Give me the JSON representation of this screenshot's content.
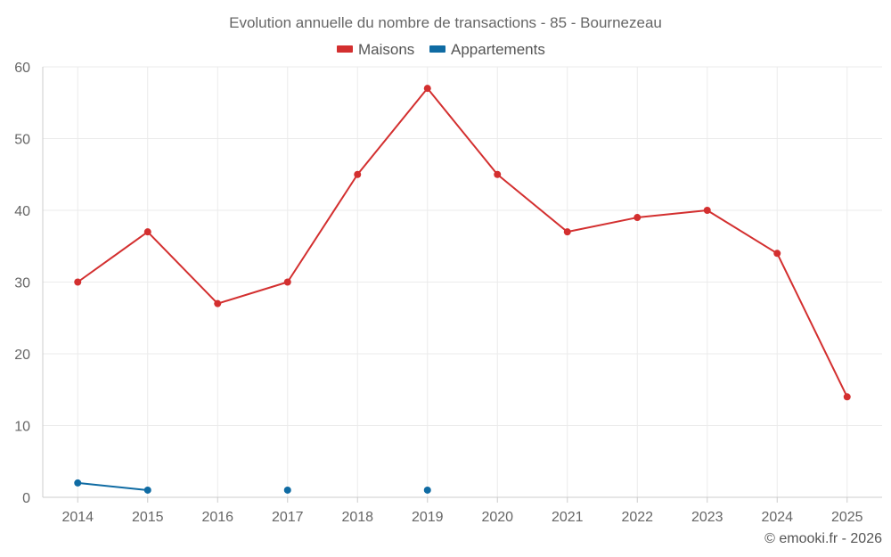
{
  "chart_data": {
    "type": "line",
    "title": "Evolution annuelle du nombre de transactions - 85 - Bournezeau",
    "categories": [
      "2014",
      "2015",
      "2016",
      "2017",
      "2018",
      "2019",
      "2020",
      "2021",
      "2022",
      "2023",
      "2024",
      "2025"
    ],
    "series": [
      {
        "name": "Maisons",
        "color": "#d32f2f",
        "values": [
          30,
          37,
          27,
          30,
          45,
          57,
          45,
          37,
          39,
          40,
          34,
          14
        ]
      },
      {
        "name": "Appartements",
        "color": "#0f6ba3",
        "values": [
          2,
          1,
          null,
          1,
          null,
          1,
          null,
          null,
          null,
          null,
          null,
          null
        ]
      }
    ],
    "ylim": [
      0,
      60
    ],
    "yticks": [
      0,
      10,
      20,
      30,
      40,
      50,
      60
    ],
    "xlabel": "",
    "ylabel": "",
    "grid": true,
    "legend": "top-center"
  },
  "credit": "© emooki.fr - 2026"
}
